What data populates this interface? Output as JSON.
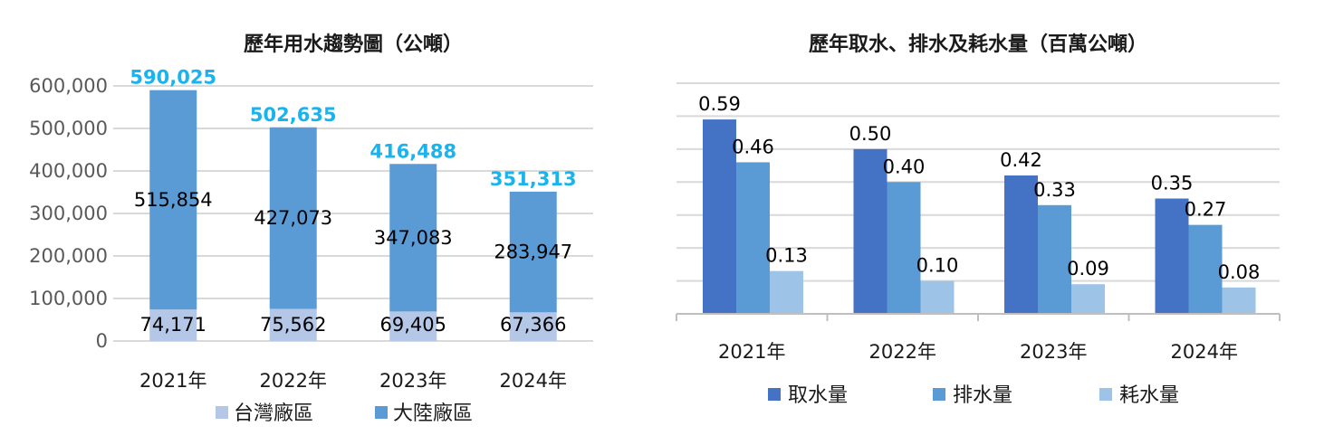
{
  "chart_data": [
    {
      "type": "bar",
      "stacked": true,
      "title": "歷年用水趨勢圖（公噸）",
      "categories": [
        "2021年",
        "2022年",
        "2023年",
        "2024年"
      ],
      "ylim": [
        0,
        600000
      ],
      "yticks": [
        "0",
        "100,000",
        "200,000",
        "300,000",
        "400,000",
        "500,000",
        "600,000"
      ],
      "grid": true,
      "legend_position": "bottom",
      "series": [
        {
          "name": "台灣廠區",
          "values": [
            74171,
            75562,
            69405,
            67366
          ],
          "labels": [
            "74,171",
            "75,562",
            "69,405",
            "67,366"
          ],
          "color": "#b4c7e7"
        },
        {
          "name": "大陸廠區",
          "values": [
            515854,
            427073,
            347083,
            283947
          ],
          "labels": [
            "515,854",
            "427,073",
            "347,083",
            "283,947"
          ],
          "color": "#5b9bd5"
        }
      ],
      "totals": [
        "590,025",
        "502,635",
        "416,488",
        "351,313"
      ],
      "total_color": "#19b3ef"
    },
    {
      "type": "bar",
      "title": "歷年取水、排水及耗水量（百萬公噸）",
      "categories": [
        "2021年",
        "2022年",
        "2023年",
        "2024年"
      ],
      "ylim": [
        0,
        0.7
      ],
      "grid": true,
      "legend_position": "bottom",
      "series": [
        {
          "name": "取水量",
          "values": [
            0.59,
            0.5,
            0.42,
            0.35
          ],
          "labels": [
            "0.59",
            "0.50",
            "0.42",
            "0.35"
          ],
          "color": "#4472c4"
        },
        {
          "name": "排水量",
          "values": [
            0.46,
            0.4,
            0.33,
            0.27
          ],
          "labels": [
            "0.46",
            "0.40",
            "0.33",
            "0.27"
          ],
          "color": "#5b9bd5"
        },
        {
          "name": "耗水量",
          "values": [
            0.13,
            0.1,
            0.09,
            0.08
          ],
          "labels": [
            "0.13",
            "0.10",
            "0.09",
            "0.08"
          ],
          "color": "#9dc3e6"
        }
      ]
    }
  ]
}
